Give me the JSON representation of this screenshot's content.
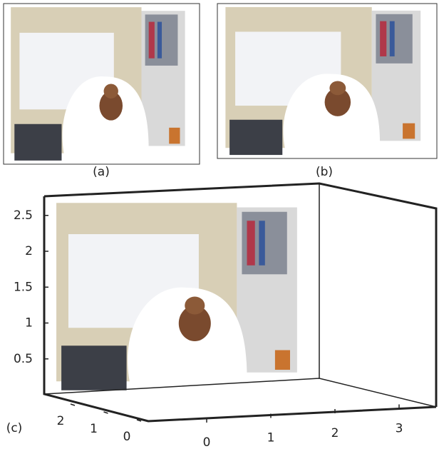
{
  "panels": [
    {
      "label": "(a)"
    },
    {
      "label": "(b)"
    },
    {
      "label": "(c)"
    }
  ],
  "axes_3d": {
    "z_ticks": [
      0.5,
      1,
      1.5,
      2,
      2.5
    ],
    "y_ticks": [
      2,
      1,
      0
    ],
    "x_ticks": [
      0,
      1,
      2,
      3
    ]
  }
}
